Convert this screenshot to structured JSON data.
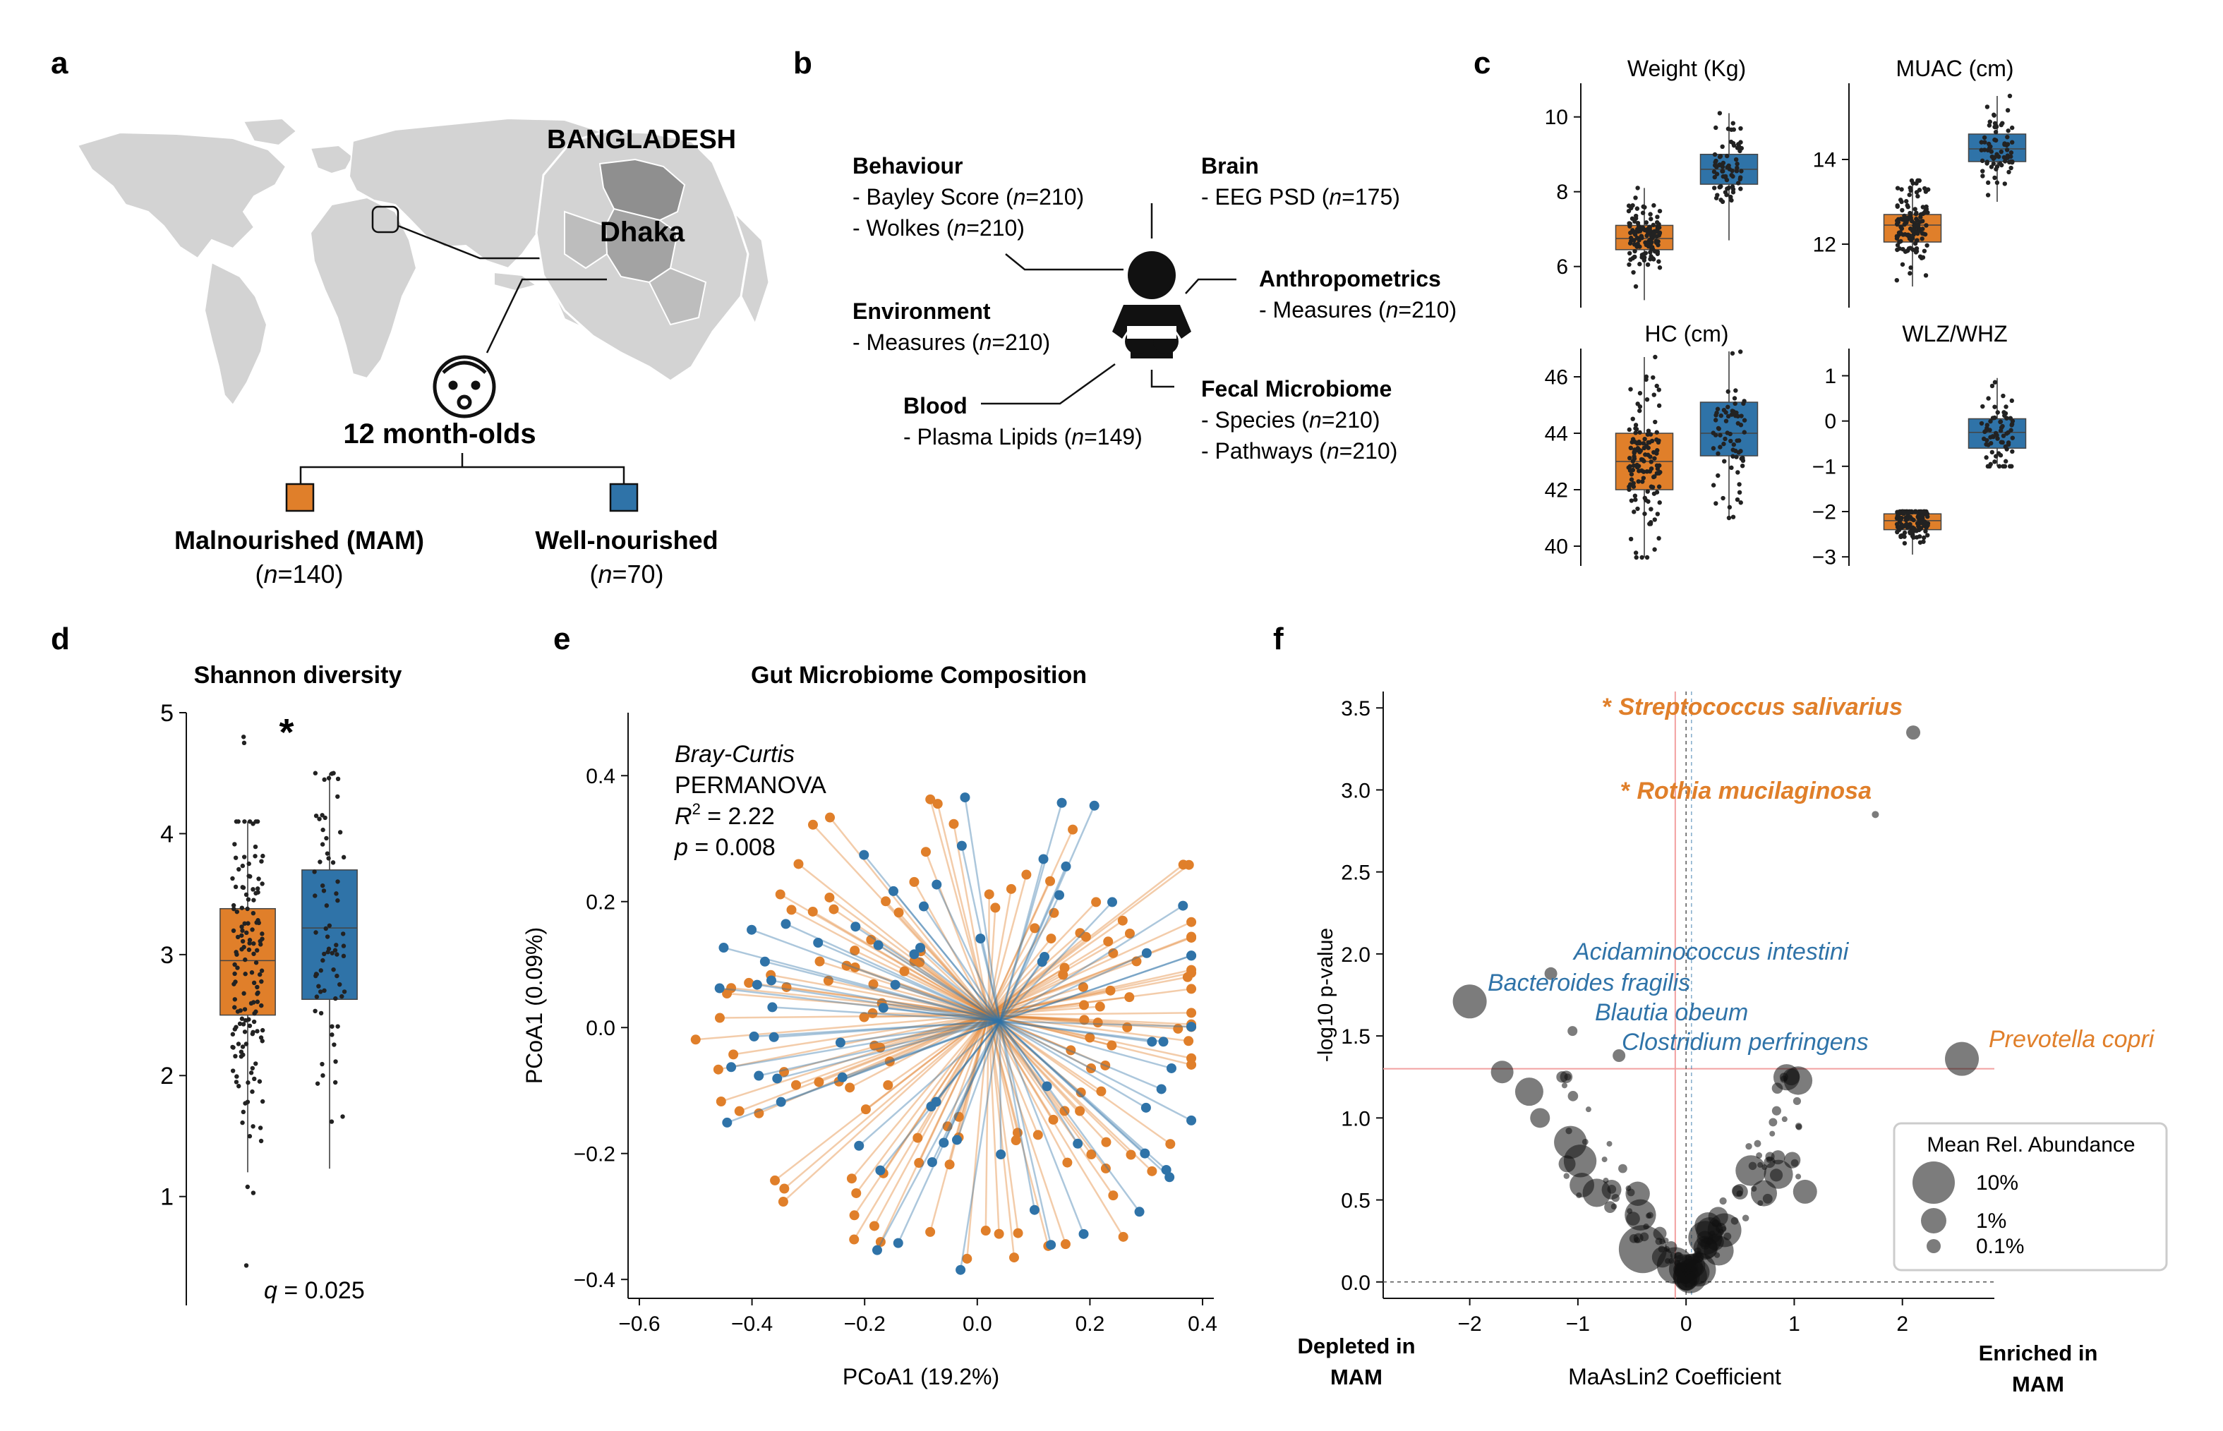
{
  "colors": {
    "mam": "#e07f2a",
    "well": "#2f73a8",
    "map": "#d3d3d3",
    "mapDark": "#8f8f8f",
    "ref": "#f2a0a0"
  },
  "panel_labels": [
    "a",
    "b",
    "c",
    "d",
    "e",
    "f"
  ],
  "a": {
    "country": "BANGLADESH",
    "city": "Dhaka",
    "age": "12 month-olds",
    "groups": [
      {
        "name": "Malnourished (MAM)",
        "n_prefix": "(",
        "n_var": "n",
        "n_suffix": "=140)"
      },
      {
        "name": "Well-nourished",
        "n_prefix": "(",
        "n_var": "n",
        "n_suffix": "=70)"
      }
    ],
    "baby_icon": "baby-face-icon"
  },
  "b": {
    "person_icon": "baby-icon",
    "categories": [
      {
        "title": "Behaviour",
        "items": [
          {
            "pre": "- Bayley Score (",
            "n": "n",
            "post": "=210)"
          },
          {
            "pre": "- Wolkes (",
            "n": "n",
            "post": "=210)"
          }
        ]
      },
      {
        "title": "Brain",
        "items": [
          {
            "pre": "- EEG PSD (",
            "n": "n",
            "post": "=175)"
          }
        ]
      },
      {
        "title": "Environment",
        "items": [
          {
            "pre": "- Measures (",
            "n": "n",
            "post": "=210)"
          }
        ]
      },
      {
        "title": "Anthropometrics",
        "items": [
          {
            "pre": "- Measures (",
            "n": "n",
            "post": "=210)"
          }
        ]
      },
      {
        "title": "Blood",
        "items": [
          {
            "pre": "- Plasma Lipids (",
            "n": "n",
            "post": "=149)"
          }
        ]
      },
      {
        "title": "Fecal Microbiome",
        "items": [
          {
            "pre": "- Species (",
            "n": "n",
            "post": "=210)"
          },
          {
            "pre": "- Pathways (",
            "n": "n",
            "post": "=210)"
          }
        ]
      }
    ]
  },
  "chart_data": [
    {
      "type": "box",
      "panel": "c",
      "title": "Weight (Kg)",
      "categories": [
        "Malnourished (MAM)",
        "Well-nourished"
      ],
      "yticks": [
        6,
        8,
        10
      ],
      "ylim": [
        4.9,
        10.9
      ],
      "boxes": [
        {
          "min": 5.1,
          "q1": 6.45,
          "median": 6.75,
          "q3": 7.1,
          "max": 8.1
        },
        {
          "min": 6.7,
          "q1": 8.2,
          "median": 8.6,
          "q3": 9.0,
          "max": 10.1
        }
      ]
    },
    {
      "type": "box",
      "panel": "c",
      "title": "MUAC (cm)",
      "categories": [
        "Malnourished (MAM)",
        "Well-nourished"
      ],
      "yticks": [
        12,
        14
      ],
      "ylim": [
        10.5,
        15.8
      ],
      "boxes": [
        {
          "min": 11.0,
          "q1": 12.05,
          "median": 12.45,
          "q3": 12.7,
          "max": 13.5
        },
        {
          "min": 13.0,
          "q1": 13.95,
          "median": 14.25,
          "q3": 14.6,
          "max": 15.5
        }
      ]
    },
    {
      "type": "box",
      "panel": "c",
      "title": "HC (cm)",
      "categories": [
        "Malnourished (MAM)",
        "Well-nourished"
      ],
      "yticks": [
        40,
        42,
        44,
        46
      ],
      "ylim": [
        39.3,
        47.0
      ],
      "boxes": [
        {
          "min": 39.6,
          "q1": 42.0,
          "median": 43.0,
          "q3": 44.0,
          "max": 46.7
        },
        {
          "min": 41.0,
          "q1": 43.2,
          "median": 44.0,
          "q3": 45.1,
          "max": 46.9
        }
      ]
    },
    {
      "type": "box",
      "panel": "c",
      "title": "WLZ/WHZ",
      "categories": [
        "Malnourished (MAM)",
        "Well-nourished"
      ],
      "yticks": [
        -3,
        -2,
        -1,
        0,
        1
      ],
      "ylim": [
        -3.2,
        1.6
      ],
      "boxes": [
        {
          "min": -2.95,
          "q1": -2.4,
          "median": -2.2,
          "q3": -2.05,
          "max": -2.0
        },
        {
          "min": -1.0,
          "q1": -0.6,
          "median": -0.25,
          "q3": 0.05,
          "max": 0.95
        }
      ]
    },
    {
      "type": "box",
      "panel": "d",
      "title": "Shannon diversity",
      "categories": [
        "Malnourished (MAM)",
        "Well-nourished"
      ],
      "yticks": [
        1,
        2,
        3,
        4,
        5
      ],
      "ylim": [
        0.1,
        5.0
      ],
      "significance": "*",
      "q_var": "q",
      "q_value": " = 0.025",
      "boxes": [
        {
          "min": 1.2,
          "q1": 2.5,
          "median": 2.95,
          "q3": 3.38,
          "max": 4.1,
          "outliers": [
            0.43,
            1.03,
            1.08,
            4.75,
            4.8
          ]
        },
        {
          "min": 1.23,
          "q1": 2.63,
          "median": 3.22,
          "q3": 3.7,
          "max": 4.5
        }
      ]
    },
    {
      "type": "scatter",
      "panel": "e",
      "title": "Gut Microbiome Composition",
      "xlabel": "PCoA1 (19.2%)",
      "ylabel": "PCoA1 (0.09%)",
      "xticks": [
        -0.6,
        -0.4,
        -0.2,
        0.0,
        0.2,
        0.4
      ],
      "yticks": [
        -0.4,
        -0.2,
        0.0,
        0.2,
        0.4
      ],
      "xlim": [
        -0.62,
        0.42
      ],
      "ylim": [
        -0.43,
        0.5
      ],
      "annotation": {
        "method": "Bray-Curtis",
        "test": "PERMANOVA",
        "r2_label": "R",
        "r2_value": " = 2.22",
        "p_label": "p",
        "p_value": " = 0.008"
      },
      "centroids": {
        "mam": [
          0.02,
          0.02
        ],
        "well": [
          0.04,
          0.01
        ]
      }
    },
    {
      "type": "scatter",
      "panel": "f",
      "xlabel": "MaAsLin2 Coefficient",
      "ylabel": "-log10 p-value",
      "xticks": [
        -2,
        -1,
        0,
        1,
        2
      ],
      "yticks": [
        0.0,
        0.5,
        1.0,
        1.5,
        2.0,
        2.5,
        3.0,
        3.5
      ],
      "xlim": [
        -2.8,
        2.85
      ],
      "ylim": [
        -0.1,
        3.6
      ],
      "left_note": [
        "Depleted in",
        "MAM"
      ],
      "right_note": [
        "Enriched in",
        "MAM"
      ],
      "legend": {
        "title": "Mean Rel. Abundance",
        "entries": [
          "10%",
          "1%",
          "0.1%"
        ]
      },
      "threshold_y": 1.3,
      "labeled_points": [
        {
          "name": "Streptococcus salivarius",
          "star": "* ",
          "x": 2.1,
          "y": 3.35,
          "group": "mam",
          "bold": true
        },
        {
          "name": "Rothia mucilaginosa",
          "star": "* ",
          "x": 1.75,
          "y": 2.85,
          "group": "mam",
          "bold": true
        },
        {
          "name": "Acidaminococcus intestini",
          "x": -1.25,
          "y": 1.88,
          "group": "well"
        },
        {
          "name": "Bacteroides fragilis",
          "x": -2.0,
          "y": 1.71,
          "group": "well"
        },
        {
          "name": "Blautia obeum",
          "x": -1.05,
          "y": 1.53,
          "group": "well"
        },
        {
          "name": "Clostridium perfringens",
          "x": -0.62,
          "y": 1.38,
          "group": "well"
        },
        {
          "name": "Prevotella copri",
          "x": 2.55,
          "y": 1.36,
          "group": "mam"
        }
      ]
    }
  ]
}
